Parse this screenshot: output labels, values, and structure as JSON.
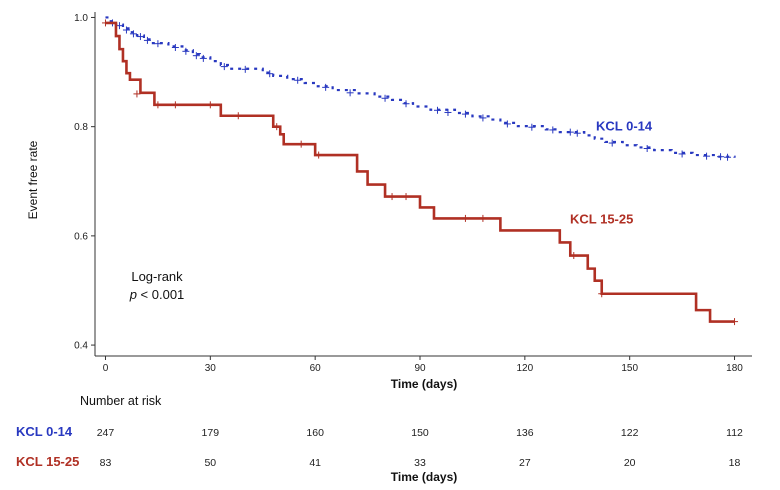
{
  "chart_data": {
    "type": "line",
    "subtype": "kaplan-meier",
    "ylabel": "Event free rate",
    "xlabel": "Time (days)",
    "x_ticks": [
      0,
      30,
      60,
      90,
      120,
      150,
      180
    ],
    "y_ticks": [
      "0.4",
      "0.6",
      "0.8",
      "1.0"
    ],
    "xlim": [
      -3,
      185
    ],
    "ylim": [
      0.38,
      1.01
    ],
    "grid": false,
    "annotation": {
      "line1": "Log-rank",
      "p_symbol": "p",
      "p_rest": " < 0.001"
    },
    "series": [
      {
        "name": "KCL 0-14",
        "color": "#2838c0",
        "line_style": "dashed",
        "label_value": 0.8,
        "steps": [
          [
            0,
            1.0
          ],
          [
            1,
            0.993
          ],
          [
            3,
            0.987
          ],
          [
            5,
            0.98
          ],
          [
            7,
            0.973
          ],
          [
            9,
            0.967
          ],
          [
            11,
            0.96
          ],
          [
            13,
            0.953
          ],
          [
            18,
            0.947
          ],
          [
            22,
            0.94
          ],
          [
            25,
            0.933
          ],
          [
            27,
            0.927
          ],
          [
            30,
            0.92
          ],
          [
            33,
            0.913
          ],
          [
            36,
            0.906
          ],
          [
            45,
            0.899
          ],
          [
            48,
            0.893
          ],
          [
            52,
            0.887
          ],
          [
            57,
            0.88
          ],
          [
            60,
            0.874
          ],
          [
            65,
            0.867
          ],
          [
            72,
            0.861
          ],
          [
            77,
            0.855
          ],
          [
            82,
            0.849
          ],
          [
            85,
            0.843
          ],
          [
            88,
            0.837
          ],
          [
            93,
            0.831
          ],
          [
            100,
            0.825
          ],
          [
            105,
            0.819
          ],
          [
            110,
            0.813
          ],
          [
            113,
            0.807
          ],
          [
            118,
            0.801
          ],
          [
            126,
            0.795
          ],
          [
            130,
            0.79
          ],
          [
            137,
            0.784
          ],
          [
            140,
            0.778
          ],
          [
            143,
            0.772
          ],
          [
            148,
            0.766
          ],
          [
            152,
            0.762
          ],
          [
            157,
            0.757
          ],
          [
            162,
            0.752
          ],
          [
            168,
            0.748
          ],
          [
            175,
            0.745
          ],
          [
            180,
            0.743
          ]
        ],
        "censored": [
          [
            2,
            0.99
          ],
          [
            4,
            0.985
          ],
          [
            6,
            0.977
          ],
          [
            8,
            0.97
          ],
          [
            10,
            0.965
          ],
          [
            12,
            0.958
          ],
          [
            15,
            0.952
          ],
          [
            20,
            0.945
          ],
          [
            23,
            0.938
          ],
          [
            26,
            0.93
          ],
          [
            28,
            0.925
          ],
          [
            34,
            0.91
          ],
          [
            40,
            0.905
          ],
          [
            47,
            0.897
          ],
          [
            55,
            0.885
          ],
          [
            63,
            0.872
          ],
          [
            70,
            0.862
          ],
          [
            80,
            0.852
          ],
          [
            86,
            0.842
          ],
          [
            95,
            0.83
          ],
          [
            98,
            0.826
          ],
          [
            103,
            0.823
          ],
          [
            108,
            0.816
          ],
          [
            115,
            0.805
          ],
          [
            122,
            0.799
          ],
          [
            128,
            0.794
          ],
          [
            133,
            0.79
          ],
          [
            135,
            0.788
          ],
          [
            145,
            0.77
          ],
          [
            155,
            0.76
          ],
          [
            165,
            0.75
          ],
          [
            172,
            0.746
          ],
          [
            176,
            0.745
          ],
          [
            178,
            0.744
          ]
        ]
      },
      {
        "name": "KCL 15-25",
        "color": "#b03024",
        "line_style": "solid",
        "label_value": 0.63,
        "steps": [
          [
            0,
            0.99
          ],
          [
            3,
            0.966
          ],
          [
            4,
            0.942
          ],
          [
            5,
            0.92
          ],
          [
            6,
            0.898
          ],
          [
            7,
            0.886
          ],
          [
            10,
            0.862
          ],
          [
            14,
            0.84
          ],
          [
            33,
            0.82
          ],
          [
            48,
            0.8
          ],
          [
            50,
            0.786
          ],
          [
            51,
            0.768
          ],
          [
            60,
            0.748
          ],
          [
            72,
            0.718
          ],
          [
            75,
            0.694
          ],
          [
            80,
            0.672
          ],
          [
            90,
            0.652
          ],
          [
            94,
            0.632
          ],
          [
            113,
            0.61
          ],
          [
            130,
            0.588
          ],
          [
            133,
            0.564
          ],
          [
            138,
            0.54
          ],
          [
            140,
            0.518
          ],
          [
            142,
            0.494
          ],
          [
            169,
            0.464
          ],
          [
            173,
            0.443
          ],
          [
            180,
            0.443
          ]
        ],
        "censored": [
          [
            0,
            0.99
          ],
          [
            9,
            0.86
          ],
          [
            15,
            0.84
          ],
          [
            20,
            0.84
          ],
          [
            30,
            0.84
          ],
          [
            38,
            0.82
          ],
          [
            49,
            0.8
          ],
          [
            56,
            0.768
          ],
          [
            61,
            0.748
          ],
          [
            82,
            0.672
          ],
          [
            86,
            0.672
          ],
          [
            103,
            0.632
          ],
          [
            108,
            0.632
          ],
          [
            134,
            0.564
          ],
          [
            142,
            0.494
          ],
          [
            180,
            0.443
          ]
        ]
      }
    ]
  },
  "risk_table": {
    "title": "Number at risk",
    "times": [
      0,
      30,
      60,
      90,
      120,
      150,
      180
    ],
    "xlabel": "Time (days)",
    "rows": [
      {
        "name": "KCL 0-14",
        "color": "#2838c0",
        "values": [
          "247",
          "179",
          "160",
          "150",
          "136",
          "122",
          "112"
        ]
      },
      {
        "name": "KCL 15-25",
        "color": "#b03024",
        "values": [
          "83",
          "50",
          "41",
          "33",
          "27",
          "20",
          "18"
        ]
      }
    ]
  }
}
